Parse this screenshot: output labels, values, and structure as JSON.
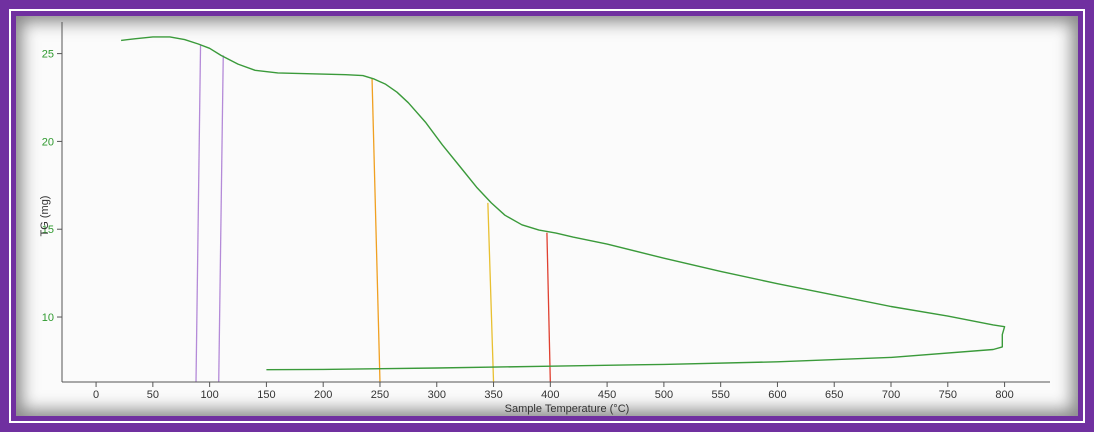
{
  "chart_data": {
    "type": "line",
    "xlabel": "Sample Temperature (°C)",
    "ylabel": "TG (mg)",
    "xlim": [
      -30,
      840
    ],
    "ylim": [
      6.3,
      26.8
    ],
    "x_ticks": [
      "0",
      "50",
      "100",
      "150",
      "200",
      "250",
      "300",
      "350",
      "400",
      "450",
      "500",
      "550",
      "600",
      "650",
      "700",
      "750",
      "800"
    ],
    "y_ticks": [
      "10",
      "15",
      "20",
      "25"
    ],
    "grid": false,
    "colors": {
      "curve": "#3a9a3a",
      "ytick_labels": "#2f9a2f",
      "frame": "#7030a0",
      "marker_purple": "#b48ad8",
      "marker_orange": "#f0a020",
      "marker_yellow": "#e8c030",
      "marker_red": "#e04030"
    },
    "series": [
      {
        "values": [
          [
            22,
            25.75
          ],
          [
            35,
            25.85
          ],
          [
            50,
            25.95
          ],
          [
            65,
            25.95
          ],
          [
            78,
            25.8
          ],
          [
            90,
            25.55
          ],
          [
            100,
            25.3
          ],
          [
            110,
            24.9
          ],
          [
            125,
            24.4
          ],
          [
            140,
            24.05
          ],
          [
            160,
            23.9
          ],
          [
            190,
            23.85
          ],
          [
            220,
            23.8
          ],
          [
            235,
            23.75
          ],
          [
            245,
            23.55
          ],
          [
            255,
            23.25
          ],
          [
            265,
            22.8
          ],
          [
            275,
            22.2
          ],
          [
            290,
            21.1
          ],
          [
            305,
            19.8
          ],
          [
            320,
            18.6
          ],
          [
            335,
            17.4
          ],
          [
            348,
            16.5
          ],
          [
            360,
            15.8
          ],
          [
            375,
            15.25
          ],
          [
            390,
            14.95
          ],
          [
            405,
            14.78
          ],
          [
            420,
            14.55
          ],
          [
            450,
            14.15
          ],
          [
            500,
            13.35
          ],
          [
            550,
            12.6
          ],
          [
            600,
            11.9
          ],
          [
            650,
            11.25
          ],
          [
            700,
            10.6
          ],
          [
            750,
            10.05
          ],
          [
            790,
            9.55
          ],
          [
            800,
            9.45
          ],
          [
            798,
            9.0
          ],
          [
            798,
            8.3
          ],
          [
            790,
            8.15
          ],
          [
            700,
            7.7
          ],
          [
            600,
            7.45
          ],
          [
            500,
            7.3
          ],
          [
            400,
            7.2
          ],
          [
            300,
            7.1
          ],
          [
            200,
            7.02
          ],
          [
            150,
            7.0
          ]
        ]
      }
    ],
    "markers": [
      {
        "color_key": "marker_purple",
        "x_top": 92,
        "y_top": 25.5,
        "x_bottom": 88,
        "y_bottom": 6.3
      },
      {
        "color_key": "marker_purple",
        "x_top": 112,
        "y_top": 24.9,
        "x_bottom": 108,
        "y_bottom": 6.3
      },
      {
        "color_key": "marker_orange",
        "x_top": 243,
        "y_top": 23.6,
        "x_bottom": 250,
        "y_bottom": 6.3
      },
      {
        "color_key": "marker_yellow",
        "x_top": 345,
        "y_top": 16.5,
        "x_bottom": 350,
        "y_bottom": 6.3
      },
      {
        "color_key": "marker_red",
        "x_top": 397,
        "y_top": 14.8,
        "x_bottom": 400,
        "y_bottom": 6.3
      }
    ]
  }
}
